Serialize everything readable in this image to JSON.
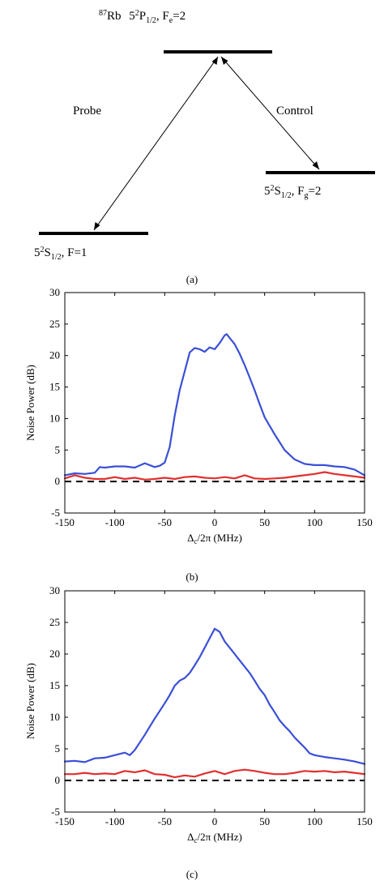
{
  "level_diagram": {
    "excited_level": {
      "atom": "87",
      "atom_sym": "Rb",
      "state": "5",
      "sup": "2",
      "term": "P",
      "sub": "1/2",
      "f_label": ", F",
      "f_sub": "e",
      "f_val": "=2"
    },
    "upper_ground_level": {
      "state": "5",
      "sup": "2",
      "term": "S",
      "sub": "1/2",
      "f_label": ", F",
      "f_sub": "g",
      "f_val": "=2"
    },
    "lower_ground_level": {
      "state": "5",
      "sup": "2",
      "term": "S",
      "sub": "1/2",
      "f_label": ", F=1"
    },
    "probe_label": "Probe",
    "control_label": "Control",
    "caption": "(a)"
  },
  "chart_data": [
    {
      "type": "line",
      "caption": "(b)",
      "ylabel": "Noise Power (dB)",
      "xlabel": {
        "delta": "Δ",
        "sub": "c",
        "rest": "/2π (MHz)"
      },
      "xlim": [
        -150,
        150
      ],
      "ylim": [
        -5,
        30
      ],
      "xticks": [
        -150,
        -100,
        -50,
        0,
        50,
        100,
        150
      ],
      "yticks": [
        -5,
        0,
        5,
        10,
        15,
        20,
        25,
        30
      ],
      "grid": false,
      "series": [
        {
          "color": "#3a4fd6",
          "x": [
            -150,
            -140,
            -130,
            -120,
            -115,
            -110,
            -100,
            -90,
            -80,
            -70,
            -60,
            -55,
            -50,
            -45,
            -40,
            -35,
            -30,
            -25,
            -20,
            -15,
            -10,
            -5,
            0,
            5,
            10,
            12,
            15,
            20,
            25,
            30,
            35,
            40,
            45,
            50,
            60,
            70,
            80,
            90,
            100,
            110,
            120,
            130,
            140,
            150
          ],
          "y": [
            1.0,
            1.3,
            1.2,
            1.4,
            2.3,
            2.2,
            2.4,
            2.4,
            2.2,
            2.9,
            2.3,
            2.5,
            3.0,
            5.5,
            10.5,
            14.5,
            17.5,
            20.5,
            21.2,
            21.0,
            20.6,
            21.3,
            21.0,
            22.0,
            23.2,
            23.4,
            22.8,
            21.8,
            20.3,
            18.5,
            16.5,
            14.5,
            12.3,
            10.2,
            7.5,
            5.0,
            3.5,
            2.8,
            2.6,
            2.6,
            2.4,
            2.3,
            1.9,
            1.0
          ]
        },
        {
          "color": "#e0302f",
          "x": [
            -150,
            -140,
            -130,
            -120,
            -110,
            -100,
            -90,
            -80,
            -70,
            -60,
            -50,
            -40,
            -30,
            -20,
            -10,
            0,
            10,
            20,
            30,
            40,
            50,
            60,
            70,
            80,
            90,
            100,
            110,
            120,
            130,
            140,
            150
          ],
          "y": [
            0.5,
            1.0,
            0.6,
            0.4,
            0.4,
            0.7,
            0.4,
            0.6,
            0.3,
            0.4,
            0.6,
            0.4,
            0.7,
            0.8,
            0.6,
            0.5,
            0.7,
            0.5,
            1.0,
            0.5,
            0.4,
            0.5,
            0.6,
            0.8,
            1.0,
            1.2,
            1.5,
            1.2,
            1.0,
            0.8,
            0.6
          ]
        },
        {
          "color": "#000000",
          "dashed": true,
          "x": [
            -150,
            150
          ],
          "y": [
            0,
            0
          ]
        }
      ]
    },
    {
      "type": "line",
      "caption": "(c)",
      "ylabel": "Noise Power (dB)",
      "xlabel": {
        "delta": "Δ",
        "sub": "c",
        "rest": "/2π (MHz)"
      },
      "xlim": [
        -150,
        150
      ],
      "ylim": [
        -5,
        30
      ],
      "xticks": [
        -150,
        -100,
        -50,
        0,
        50,
        100,
        150
      ],
      "yticks": [
        -5,
        0,
        5,
        10,
        15,
        20,
        25,
        30
      ],
      "grid": false,
      "series": [
        {
          "color": "#3a4fd6",
          "x": [
            -150,
            -140,
            -130,
            -120,
            -110,
            -100,
            -90,
            -85,
            -80,
            -75,
            -70,
            -65,
            -60,
            -55,
            -50,
            -45,
            -40,
            -35,
            -30,
            -25,
            -20,
            -15,
            -10,
            -5,
            0,
            5,
            10,
            15,
            20,
            25,
            30,
            35,
            40,
            45,
            50,
            55,
            60,
            65,
            70,
            75,
            80,
            85,
            90,
            95,
            100,
            110,
            120,
            130,
            140,
            150
          ],
          "y": [
            3.0,
            3.1,
            2.9,
            3.5,
            3.6,
            4.0,
            4.4,
            4.0,
            4.8,
            6.0,
            7.2,
            8.5,
            9.8,
            11.0,
            12.2,
            13.5,
            15.0,
            15.8,
            16.2,
            17.0,
            18.2,
            19.5,
            21.0,
            22.5,
            24.0,
            23.5,
            22.0,
            21.0,
            20.0,
            19.0,
            18.0,
            17.0,
            15.8,
            14.5,
            13.5,
            12.0,
            10.8,
            9.5,
            8.6,
            7.8,
            6.8,
            6.0,
            5.2,
            4.3,
            4.0,
            3.7,
            3.5,
            3.3,
            3.0,
            2.6
          ]
        },
        {
          "color": "#e0302f",
          "x": [
            -150,
            -140,
            -130,
            -120,
            -110,
            -100,
            -90,
            -80,
            -70,
            -60,
            -50,
            -40,
            -30,
            -20,
            -10,
            0,
            10,
            20,
            30,
            40,
            50,
            60,
            70,
            80,
            90,
            100,
            110,
            120,
            130,
            140,
            150
          ],
          "y": [
            1.0,
            1.0,
            1.2,
            1.0,
            1.1,
            1.0,
            1.5,
            1.3,
            1.6,
            1.0,
            0.9,
            0.5,
            0.8,
            0.6,
            1.1,
            1.5,
            1.0,
            1.5,
            1.7,
            1.5,
            1.2,
            1.0,
            1.0,
            1.2,
            1.5,
            1.4,
            1.5,
            1.3,
            1.4,
            1.2,
            1.0
          ]
        },
        {
          "color": "#000000",
          "dashed": true,
          "x": [
            -150,
            150
          ],
          "y": [
            0,
            0
          ]
        }
      ]
    }
  ]
}
